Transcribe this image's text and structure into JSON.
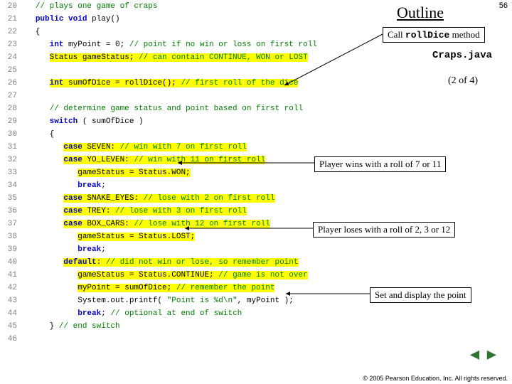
{
  "title": "Outline",
  "pagenum": "56",
  "filename": "Craps.java",
  "subtitle": "(2 of 4)",
  "callouts": {
    "c1": "Call ",
    "c1b": "rollDice",
    "c1c": " method",
    "c2": "Player wins with a roll of 7 or 11",
    "c3": "Player loses with a roll of 2, 3 or 12",
    "c4": "Set and display the point"
  },
  "footer": "© 2005 Pearson Education, Inc. All rights reserved.",
  "code": [
    {
      "n": "20",
      "html": "   <span class='comment'>// plays one game of craps</span>"
    },
    {
      "n": "21",
      "html": "   <span class='kw'>public</span> <span class='kw'>void</span> play()"
    },
    {
      "n": "22",
      "html": "   {"
    },
    {
      "n": "23",
      "html": "      <span class='kw'>int</span> myPoint = <span class='num'>0</span>; <span class='comment'>// point if no win or loss on first roll</span>"
    },
    {
      "n": "24",
      "html": "      <span class='hl'>Status gameStatus; <span class='comment'>// can contain CONTINUE, WON or LOST</span></span>"
    },
    {
      "n": "25",
      "html": ""
    },
    {
      "n": "26",
      "html": "      <span class='hl'><span class='kw'>int</span> sumOfDice = rollDice(); <span class='comment'>// first roll of the dice</span></span>"
    },
    {
      "n": "27",
      "html": ""
    },
    {
      "n": "28",
      "html": "      <span class='comment'>// determine game status and point based on first roll</span>"
    },
    {
      "n": "29",
      "html": "      <span class='kw'>switch</span> ( sumOfDice )"
    },
    {
      "n": "30",
      "html": "      {"
    },
    {
      "n": "31",
      "html": "         <span class='hl'><span class='kw'>case</span> SEVEN: <span class='comment'>// win with 7 on first roll</span></span>"
    },
    {
      "n": "32",
      "html": "         <span class='hl'><span class='kw'>case</span> YO_LEVEN: <span class='comment'>// win with 11 on first roll</span></span>"
    },
    {
      "n": "33",
      "html": "            <span class='hl'>gameStatus = Status.WON;</span>"
    },
    {
      "n": "34",
      "html": "            <span class='kw'>break</span>;"
    },
    {
      "n": "35",
      "html": "         <span class='hl'><span class='kw'>case</span> SNAKE_EYES: <span class='comment'>// lose with 2 on first roll</span></span>"
    },
    {
      "n": "36",
      "html": "         <span class='hl'><span class='kw'>case</span> TREY: <span class='comment'>// lose with 3 on first roll</span></span>"
    },
    {
      "n": "37",
      "html": "         <span class='hl'><span class='kw'>case</span> BOX_CARS: <span class='comment'>// lose with 12 on first roll</span></span>"
    },
    {
      "n": "38",
      "html": "            <span class='hl'>gameStatus = Status.LOST;</span>"
    },
    {
      "n": "39",
      "html": "            <span class='kw'>break</span>;"
    },
    {
      "n": "40",
      "html": "         <span class='hl'><span class='kw'>default</span>: <span class='comment'>// did not win or lose, so remember point</span></span>"
    },
    {
      "n": "41",
      "html": "            <span class='hl'>gameStatus = Status.CONTINUE; <span class='comment'>// game is not over</span></span>"
    },
    {
      "n": "42",
      "html": "            <span class='hl'>myPoint = sumOfDice; <span class='comment'>// remember the point</span></span>"
    },
    {
      "n": "43",
      "html": "            System.out.printf( <span class='str'>\"Point is %d\\n\"</span>, myPoint );"
    },
    {
      "n": "44",
      "html": "            <span class='kw'>break</span>; <span class='comment'>// optional at end of switch</span>"
    },
    {
      "n": "45",
      "html": "      } <span class='comment'>// end switch</span>"
    },
    {
      "n": "46",
      "html": ""
    }
  ],
  "style": {
    "highlight_color": "#ffff00",
    "keyword_color": "#0000cc",
    "comment_color": "#008000",
    "lineno_color": "#808080",
    "code_fontsize": 11,
    "code_lineheight": 18
  }
}
